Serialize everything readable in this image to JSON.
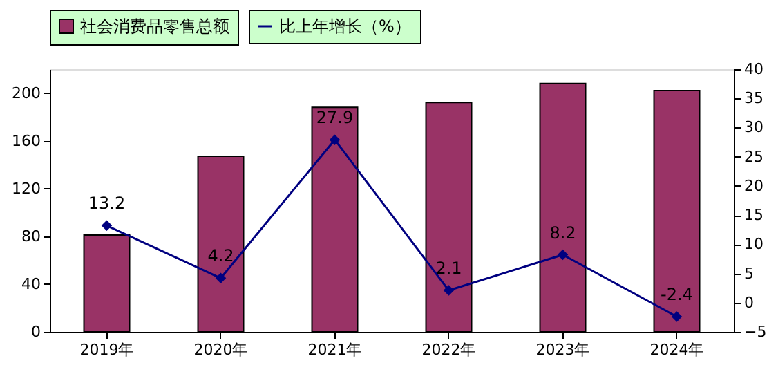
{
  "chart_data": {
    "type": "bar",
    "categories": [
      "2019年",
      "2020年",
      "2021年",
      "2022年",
      "2023年",
      "2024年"
    ],
    "series": [
      {
        "name": "社会消费品零售总额",
        "color": "#993366",
        "values": [
          81,
          147,
          188,
          192,
          208,
          202
        ]
      },
      {
        "name": "比上年增长（%）",
        "type": "line",
        "axis": "y2",
        "color": "#000080",
        "marker": "diamond",
        "values": [
          13.2,
          4.2,
          27.9,
          2.1,
          8.2,
          -2.4
        ],
        "data_labels": true
      }
    ],
    "ylim": [
      0,
      220
    ],
    "yticks": [
      0,
      40,
      80,
      120,
      160,
      200
    ],
    "y2lim": [
      -5,
      40
    ],
    "y2ticks": [
      -5,
      0,
      5,
      10,
      15,
      20,
      25,
      30,
      35,
      40
    ],
    "grid": false,
    "legend": "top"
  }
}
